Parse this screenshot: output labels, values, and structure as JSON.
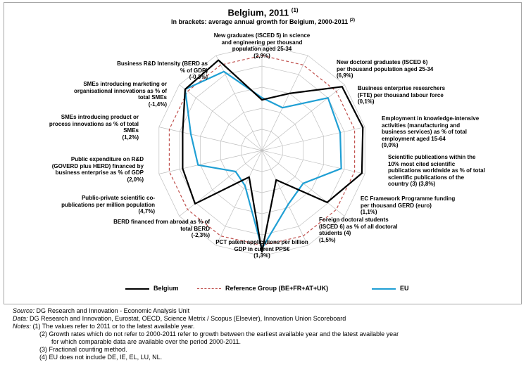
{
  "chart_data": {
    "type": "radar",
    "title": "Belgium, 2011",
    "title_note": "(1)",
    "subtitle": "In brackets: average annual growth for Belgium, 2000-2011",
    "subtitle_note": "(2)",
    "axes": [
      "New graduates (ISCED 5) in science and engineering per thousand population aged 25-34 (2,9%)",
      "New doctoral graduates (ISCED 6) per thousand population aged 25-34 (6,9%)",
      "Business enterprise researchers (FTE) per thousand labour force (0,1%)",
      "Employment in knowledge-intensive activities (manufacturing and business services) as % of total employment aged 15-64 (0,0%)",
      "Scientific publications within the 10% most cited scientific publications worldwide as % of total scientific publications of the country (3) (3,8%)",
      "EC Framework Programme funding per thousand GERD (euro) (1,1%)",
      "Foreign doctoral students (ISCED 6) as % of all doctoral students (4) (1,5%)",
      "PCT patent applications per billion GDP in current PPS€ (1,3%)",
      "BERD financed from abroad as % of total BERD (-2,3%)",
      "Public-private scientific co-publications per million population (4,7%)",
      "Public expenditure on R&D (GOVERD plus HERD) financed by business enterprise as % of GDP (2,0%)",
      "SMEs introducing product or process innovations as % of total SMEs (1,2%)",
      "SMEs introducing marketing or organisational innovations as % of total SMEs (-1,4%)",
      "Business R&D Intensity (BERD as % of GDP) (-0,3%)"
    ],
    "axis_label_lines": [
      [
        "New graduates (ISCED 5) in science",
        "and engineering per thousand",
        "population aged 25-34",
        "(2,9%)"
      ],
      [
        "New doctoral graduates (ISCED 6)",
        "per thousand population aged 25-34",
        "(6,9%)"
      ],
      [
        "Business enterprise researchers",
        "(FTE) per thousand labour force",
        "(0,1%)"
      ],
      [
        "Employment in knowledge-intensive",
        "activities (manufacturing and",
        "business services) as % of total",
        "employment aged 15-64",
        "(0,0%)"
      ],
      [
        "Scientific publications within the",
        "10% most cited scientific",
        "publications worldwide as % of total",
        "scientific publications of the",
        "country (3) (3,8%)"
      ],
      [
        "EC Framework Programme funding",
        "per thousand GERD (euro)",
        "(1,1%)"
      ],
      [
        "Foreign doctoral students",
        "(ISCED 6) as % of all doctoral",
        "students (4)",
        "(1,5%)"
      ],
      [
        "PCT patent applications per billion",
        "GDP in current PPS€",
        "(1,3%)"
      ],
      [
        "BERD financed from abroad as % of",
        "total BERD",
        "(-2,3%)"
      ],
      [
        "Public-private scientific co-",
        "publications per million population",
        "(4,7%)"
      ],
      [
        "Public expenditure on R&D",
        "(GOVERD plus HERD) financed by",
        "business enterprise as % of GDP",
        "(2,0%)"
      ],
      [
        "SMEs introducing product or",
        "process innovations as % of total",
        "SMEs",
        "(1,2%)"
      ],
      [
        "SMEs introducing marketing or",
        "organisational innovations as % of",
        "total SMEs",
        "(-1,4%)"
      ],
      [
        "Business R&D Intensity (BERD as",
        "% of GDP)",
        "(-0,3%)"
      ]
    ],
    "rlim": [
      0,
      1
    ],
    "grid_rings": 5,
    "legend_position": "bottom",
    "series": [
      {
        "name": "Belgium",
        "color": "#000000",
        "style": "solid",
        "values": [
          0.48,
          0.6,
          0.97,
          0.98,
          0.97,
          0.79,
          0.31,
          0.96,
          0.28,
          0.81,
          0.77,
          0.77,
          0.93,
          0.95
        ]
      },
      {
        "name": "Reference Group (BE+FR+AT+UK)",
        "color": "#c0504d",
        "style": "dashed",
        "values": [
          0.9,
          0.9,
          0.9,
          0.9,
          0.9,
          0.9,
          0.9,
          0.9,
          0.9,
          0.9,
          0.9,
          0.9,
          0.9,
          0.9
        ]
      },
      {
        "name": "EU",
        "color": "#1f9fd4",
        "style": "solid",
        "values": [
          0.5,
          0.45,
          0.8,
          0.76,
          0.77,
          0.5,
          0.57,
          0.93,
          0.37,
          0.32,
          0.62,
          0.69,
          0.93,
          0.83
        ]
      }
    ]
  },
  "notes": {
    "source_key": "Source:",
    "source": "DG Research and Innovation - Economic Analysis Unit",
    "data_key": "Data:",
    "data": "DG Research and Innovation, Eurostat, OECD, Science Metrix / Scopus (Elsevier), Innovation Union Scoreboard",
    "notes_key": "Notes:",
    "n1": "(1) The values refer to 2011 or to the latest available year.",
    "n2a": "(2) Growth rates which do not refer to 2000-2011 refer to growth between the earliest available year and the latest available year",
    "n2b": "for which comparable data are available over the period 2000-2011.",
    "n3": "(3) Fractional counting method.",
    "n4": "(4) EU does not include DE, IE, EL, LU, NL."
  }
}
